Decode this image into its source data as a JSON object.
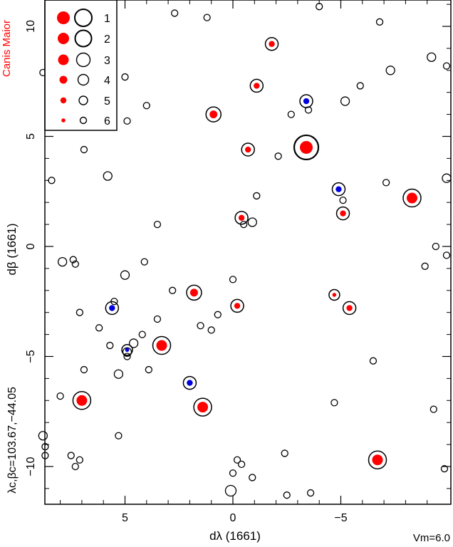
{
  "chart_data": {
    "type": "scatter",
    "constellation": "Canis Maior",
    "xlabel": "dλ  (1661)",
    "ylabel": "dβ  (1661)",
    "center_label": "λc,βc=103.67,−44.05",
    "limit_label": "Vm=6.0",
    "xlim": [
      8.5,
      -10.0
    ],
    "ylim": [
      -11.5,
      11.0
    ],
    "x_ticks": [
      5,
      0,
      -5
    ],
    "x_tick_labels": [
      "5",
      "0",
      "−5"
    ],
    "y_ticks": [
      -10,
      -5,
      0,
      5,
      10
    ],
    "y_tick_labels": [
      "−10",
      "−5",
      "0",
      "5",
      "10"
    ],
    "legend": {
      "position": "top-left",
      "entries": [
        {
          "mag": 1,
          "label": "1"
        },
        {
          "mag": 2,
          "label": "2"
        },
        {
          "mag": 3,
          "label": "3"
        },
        {
          "mag": 4,
          "label": "4"
        },
        {
          "mag": 5,
          "label": "5"
        },
        {
          "mag": 6,
          "label": "6"
        }
      ]
    },
    "colors": {
      "red": "#ff0000",
      "blue": "#0000dd",
      "outline": "#000000",
      "title": "#ff0000"
    },
    "open_stars": [
      {
        "x": 2.7,
        "y": 10.6,
        "m": 6
      },
      {
        "x": 1.2,
        "y": 10.4,
        "m": 6
      },
      {
        "x": -4.0,
        "y": 10.9,
        "m": 6
      },
      {
        "x": -6.8,
        "y": 10.2,
        "m": 6
      },
      {
        "x": 8.8,
        "y": 7.9,
        "m": 6
      },
      {
        "x": 5.0,
        "y": 7.7,
        "m": 6
      },
      {
        "x": -9.2,
        "y": 8.6,
        "m": 5
      },
      {
        "x": -7.3,
        "y": 8.0,
        "m": 5
      },
      {
        "x": -5.9,
        "y": 7.3,
        "m": 6
      },
      {
        "x": -9.9,
        "y": 8.2,
        "m": 6
      },
      {
        "x": 4.0,
        "y": 6.4,
        "m": 6
      },
      {
        "x": -5.2,
        "y": 6.6,
        "m": 5
      },
      {
        "x": -2.7,
        "y": 6.0,
        "m": 6
      },
      {
        "x": -3.5,
        "y": 6.2,
        "m": 6
      },
      {
        "x": 4.9,
        "y": 5.7,
        "m": 6
      },
      {
        "x": 6.9,
        "y": 4.4,
        "m": 6
      },
      {
        "x": -2.1,
        "y": 4.1,
        "m": 6
      },
      {
        "x": 5.8,
        "y": 3.2,
        "m": 5
      },
      {
        "x": 8.4,
        "y": 3.0,
        "m": 6
      },
      {
        "x": -7.1,
        "y": 2.9,
        "m": 6
      },
      {
        "x": -9.9,
        "y": 3.1,
        "m": 5
      },
      {
        "x": -1.1,
        "y": 2.3,
        "m": 6
      },
      {
        "x": -5.1,
        "y": 2.1,
        "m": 6
      },
      {
        "x": -0.9,
        "y": 1.1,
        "m": 5
      },
      {
        "x": -0.5,
        "y": 1.0,
        "m": 6
      },
      {
        "x": 3.5,
        "y": 1.0,
        "m": 6
      },
      {
        "x": -9.4,
        "y": 0.0,
        "m": 6
      },
      {
        "x": -9.9,
        "y": -0.4,
        "m": 6
      },
      {
        "x": 7.9,
        "y": -0.7,
        "m": 5
      },
      {
        "x": 7.4,
        "y": -0.6,
        "m": 6
      },
      {
        "x": 7.3,
        "y": -0.8,
        "m": 6
      },
      {
        "x": 4.1,
        "y": -0.7,
        "m": 6
      },
      {
        "x": 5.0,
        "y": -1.3,
        "m": 5
      },
      {
        "x": -8.9,
        "y": -0.9,
        "m": 6
      },
      {
        "x": 0.0,
        "y": -1.5,
        "m": 6
      },
      {
        "x": 2.8,
        "y": -2.0,
        "m": 6
      },
      {
        "x": 5.5,
        "y": -2.5,
        "m": 6
      },
      {
        "x": 7.1,
        "y": -3.0,
        "m": 6
      },
      {
        "x": 0.7,
        "y": -3.1,
        "m": 6
      },
      {
        "x": 3.5,
        "y": -3.3,
        "m": 6
      },
      {
        "x": 6.2,
        "y": -3.7,
        "m": 6
      },
      {
        "x": 1.5,
        "y": -3.6,
        "m": 6
      },
      {
        "x": 1.0,
        "y": -3.8,
        "m": 6
      },
      {
        "x": 4.2,
        "y": -4.0,
        "m": 6
      },
      {
        "x": 5.7,
        "y": -4.5,
        "m": 6
      },
      {
        "x": 4.6,
        "y": -4.4,
        "m": 5
      },
      {
        "x": 4.9,
        "y": -4.8,
        "m": 5
      },
      {
        "x": 4.9,
        "y": -5.0,
        "m": 6
      },
      {
        "x": 6.9,
        "y": -5.6,
        "m": 6
      },
      {
        "x": 3.9,
        "y": -5.6,
        "m": 6
      },
      {
        "x": 5.3,
        "y": -5.8,
        "m": 5
      },
      {
        "x": -6.5,
        "y": -5.2,
        "m": 6
      },
      {
        "x": 8.0,
        "y": -6.8,
        "m": 6
      },
      {
        "x": -4.7,
        "y": -7.1,
        "m": 6
      },
      {
        "x": -9.3,
        "y": -7.4,
        "m": 6
      },
      {
        "x": 5.3,
        "y": -8.6,
        "m": 6
      },
      {
        "x": 8.8,
        "y": -8.6,
        "m": 5
      },
      {
        "x": 8.7,
        "y": -9.1,
        "m": 6
      },
      {
        "x": 8.7,
        "y": -9.5,
        "m": 6
      },
      {
        "x": 7.5,
        "y": -9.5,
        "m": 6
      },
      {
        "x": 7.1,
        "y": -9.7,
        "m": 6
      },
      {
        "x": 7.3,
        "y": -10.0,
        "m": 6
      },
      {
        "x": -0.2,
        "y": -9.7,
        "m": 6
      },
      {
        "x": -0.4,
        "y": -9.9,
        "m": 6
      },
      {
        "x": -2.4,
        "y": -9.4,
        "m": 6
      },
      {
        "x": 0.0,
        "y": -10.3,
        "m": 6
      },
      {
        "x": -0.9,
        "y": -10.5,
        "m": 6
      },
      {
        "x": -9.8,
        "y": -10.1,
        "m": 6
      },
      {
        "x": 0.1,
        "y": -11.1,
        "m": 4
      },
      {
        "x": -2.5,
        "y": -11.3,
        "m": 6
      },
      {
        "x": -3.6,
        "y": -11.2,
        "m": 6
      }
    ],
    "red_stars": [
      {
        "x": -3.4,
        "y": 4.5,
        "m": 1
      },
      {
        "x": -1.8,
        "y": 9.2,
        "m": 5
      },
      {
        "x": -1.1,
        "y": 7.3,
        "m": 5
      },
      {
        "x": 0.9,
        "y": 6.0,
        "m": 4
      },
      {
        "x": -0.7,
        "y": 4.4,
        "m": 5
      },
      {
        "x": -8.3,
        "y": 2.2,
        "m": 3
      },
      {
        "x": -0.4,
        "y": 1.3,
        "m": 5
      },
      {
        "x": -5.1,
        "y": 1.5,
        "m": 5
      },
      {
        "x": 1.8,
        "y": -2.1,
        "m": 4
      },
      {
        "x": -4.7,
        "y": -2.2,
        "m": 6
      },
      {
        "x": -0.2,
        "y": -2.7,
        "m": 5
      },
      {
        "x": -5.4,
        "y": -2.8,
        "m": 5
      },
      {
        "x": 3.3,
        "y": -4.5,
        "m": 3
      },
      {
        "x": 7.0,
        "y": -7.0,
        "m": 3
      },
      {
        "x": 1.4,
        "y": -7.3,
        "m": 3
      },
      {
        "x": -6.7,
        "y": -9.7,
        "m": 3
      }
    ],
    "blue_stars": [
      {
        "x": -3.4,
        "y": 6.6,
        "m": 5
      },
      {
        "x": -4.9,
        "y": 2.6,
        "m": 5
      },
      {
        "x": 5.6,
        "y": -2.8,
        "m": 5
      },
      {
        "x": 4.9,
        "y": -4.7,
        "m": 6
      },
      {
        "x": 2.0,
        "y": -6.2,
        "m": 5
      }
    ]
  }
}
